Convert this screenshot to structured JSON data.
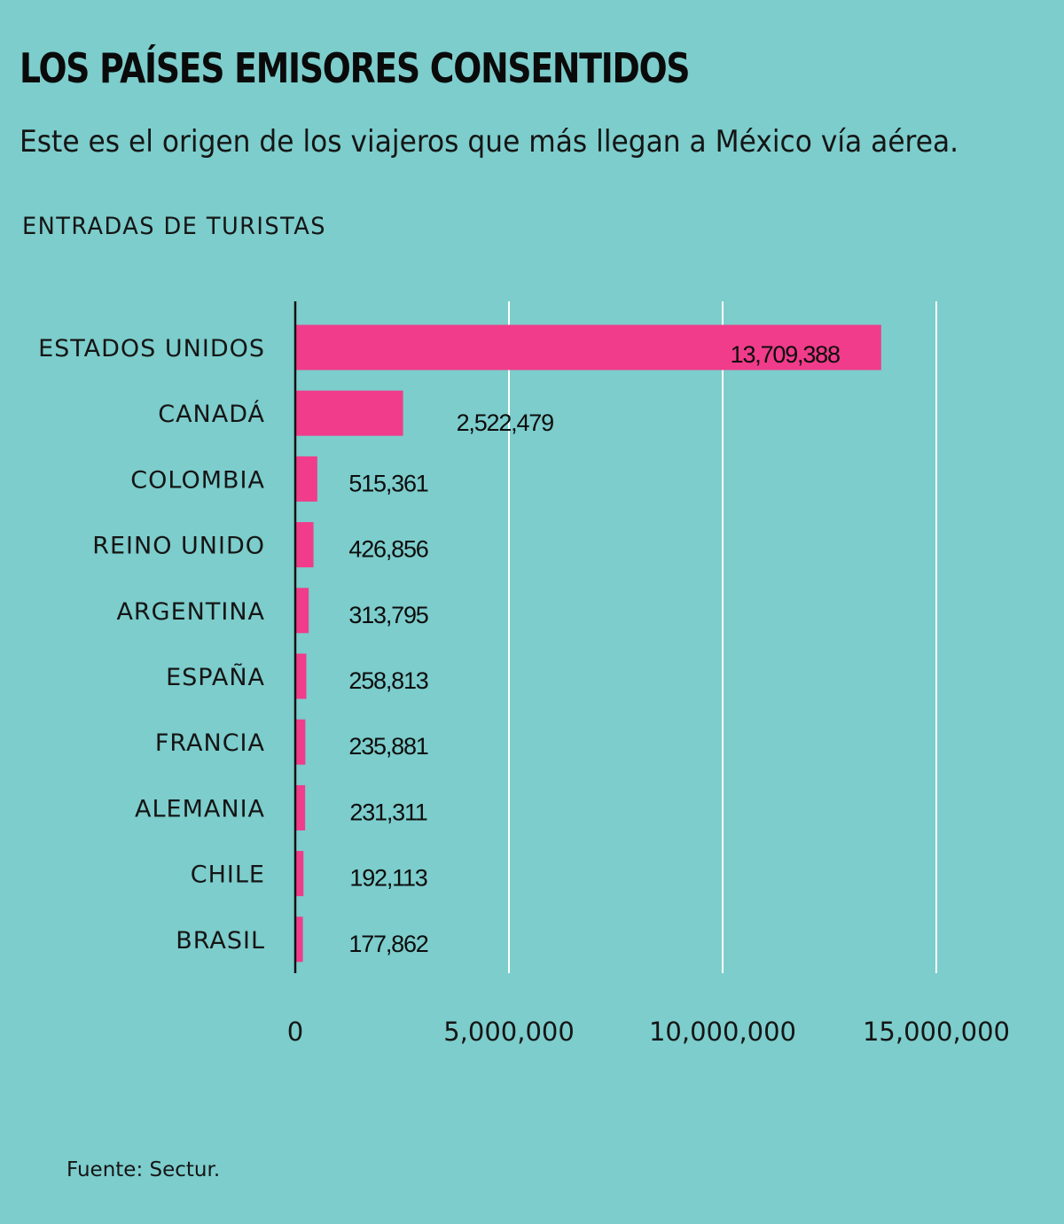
{
  "title": "LOS PAÍSES EMISORES CONSENTIDOS",
  "subtitle": "Este es el origen de los viajeros que más llegan a México vía aérea.",
  "section_label": "ENTRADAS DE TURISTAS",
  "source": "Fuente: Sectur.",
  "colors": {
    "background": "#7ccdcc",
    "bar": "#f03c8a",
    "gridline": "#ffffff",
    "axis": "#111111",
    "inside_label": "#ffffff"
  },
  "chart_data": {
    "type": "bar",
    "orientation": "horizontal",
    "title": "ENTRADAS DE TURISTAS",
    "categories": [
      "ESTADOS UNIDOS",
      "CANADÁ",
      "COLOMBIA",
      "REINO UNIDO",
      "ARGENTINA",
      "ESPAÑA",
      "FRANCIA",
      "ALEMANIA",
      "CHILE",
      "BRASIL"
    ],
    "values": [
      13709388,
      2522479,
      515361,
      426856,
      313795,
      258813,
      235881,
      231311,
      192113,
      177862
    ],
    "value_labels": [
      "13,709,388",
      "2,522,479",
      "515,361",
      "426,856",
      "313,795",
      "258,813",
      "235,881",
      "231,311",
      "192,113",
      "177,862"
    ],
    "xlim": [
      0,
      15000000
    ],
    "xticks": [
      0,
      5000000,
      10000000,
      15000000
    ],
    "xtick_labels": [
      "0",
      "5,000,000",
      "10,000,000",
      "15,000,000"
    ],
    "grid": "vertical",
    "legend": "none"
  }
}
